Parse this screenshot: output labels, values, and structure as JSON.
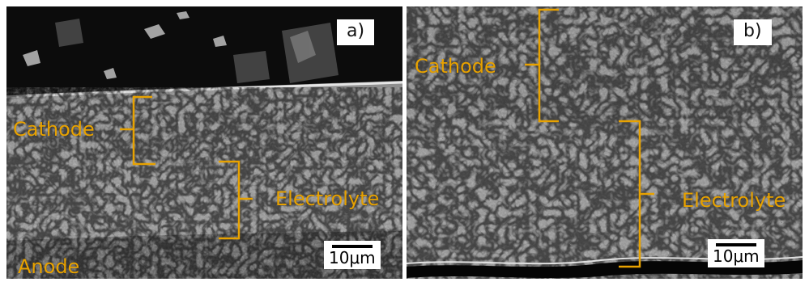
{
  "panels": [
    {
      "label": "a)",
      "regions": {
        "cathode": "Cathode",
        "electrolyte": "Electrolyte",
        "anode": "Anode"
      },
      "scale": "10μm"
    },
    {
      "label": "b)",
      "regions": {
        "cathode": "Cathode",
        "electrolyte": "Electrolyte"
      },
      "scale": "10μm"
    }
  ],
  "colors": {
    "annotation": "#e8a200",
    "background_sem": "#4a4a4a"
  }
}
